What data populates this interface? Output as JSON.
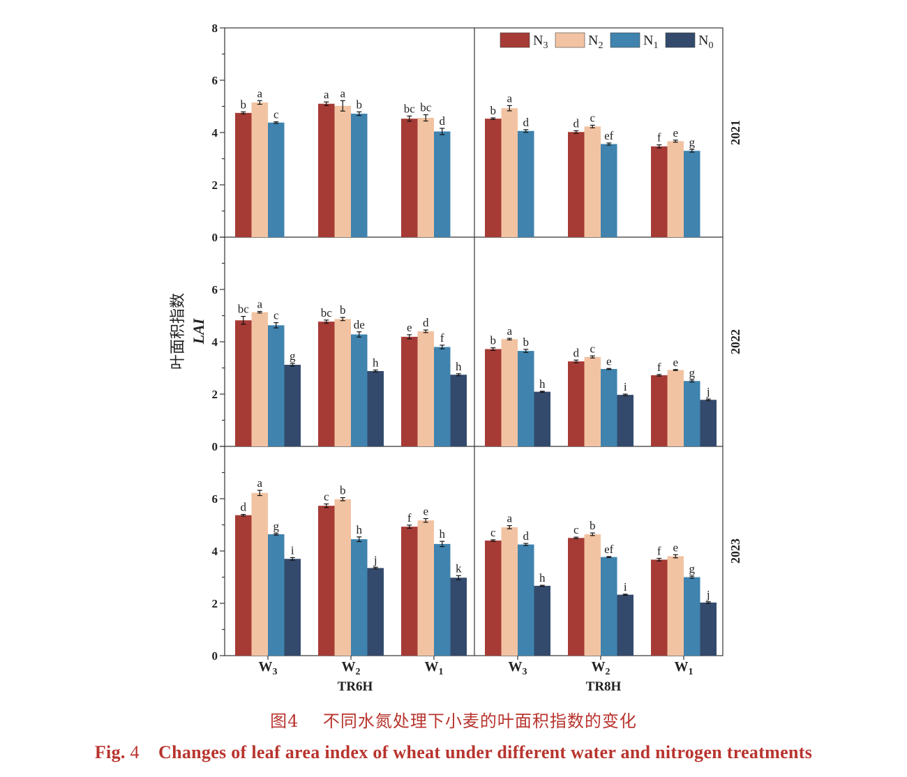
{
  "colors": {
    "N3": "#a63b36",
    "N2": "#f2c3a2",
    "N1": "#3f83ae",
    "N0": "#334a6c"
  },
  "y_axis": {
    "label_cn": "叶面积指数",
    "label_en": "LAI"
  },
  "legend": [
    "N3",
    "N2",
    "N1",
    "N0"
  ],
  "caption": {
    "cn_prefix": "图",
    "cn_num": "4",
    "cn_text": "不同水氮处理下小麦的叶面积指数的变化",
    "en_prefix": "Fig.",
    "en_num": "4",
    "en_text": "Changes of leaf area index of wheat under different water and nitrogen treatments"
  },
  "chart_data": {
    "type": "bar",
    "series_names": [
      "N3",
      "N2",
      "N1",
      "N0"
    ],
    "categories": [
      "W3",
      "W2",
      "W1"
    ],
    "groups": [
      "TR6H",
      "TR8H"
    ],
    "ylabel": "叶面积指数 LAI",
    "ylim": [
      0,
      8
    ],
    "yticks": [
      0,
      2,
      4,
      6,
      8
    ],
    "panels": [
      {
        "year": "2021",
        "TR6H": {
          "values": [
            [
              4.75,
              5.15,
              4.38,
              null
            ],
            [
              5.1,
              5.02,
              4.72,
              null
            ],
            [
              4.53,
              4.56,
              4.04,
              null
            ]
          ],
          "errors": [
            [
              0.04,
              0.07,
              0.03,
              0
            ],
            [
              0.07,
              0.2,
              0.07,
              0
            ],
            [
              0.1,
              0.12,
              0.12,
              0
            ]
          ],
          "letters": [
            [
              "b",
              "a",
              "c",
              ""
            ],
            [
              "a",
              "a",
              "b",
              ""
            ],
            [
              "bc",
              "bc",
              "d",
              ""
            ]
          ]
        },
        "TR8H": {
          "values": [
            [
              4.53,
              4.93,
              4.06,
              null
            ],
            [
              4.02,
              4.23,
              3.56,
              null
            ],
            [
              3.47,
              3.67,
              3.3,
              null
            ]
          ],
          "errors": [
            [
              0.03,
              0.1,
              0.05,
              0
            ],
            [
              0.05,
              0.05,
              0.04,
              0
            ],
            [
              0.06,
              0.04,
              0.05,
              0
            ]
          ],
          "letters": [
            [
              "b",
              "a",
              "d",
              ""
            ],
            [
              "d",
              "c",
              "ef",
              ""
            ],
            [
              "f",
              "e",
              "g",
              ""
            ]
          ]
        }
      },
      {
        "year": "2022",
        "TR6H": {
          "values": [
            [
              4.82,
              5.13,
              4.63,
              3.12
            ],
            [
              4.77,
              4.87,
              4.28,
              2.88
            ],
            [
              4.19,
              4.4,
              3.8,
              2.74
            ]
          ],
          "errors": [
            [
              0.15,
              0.03,
              0.1,
              0.05
            ],
            [
              0.06,
              0.06,
              0.1,
              0.04
            ],
            [
              0.08,
              0.05,
              0.07,
              0.04
            ]
          ],
          "letters": [
            [
              "bc",
              "a",
              "c",
              "g"
            ],
            [
              "bc",
              "b",
              "de",
              "h"
            ],
            [
              "e",
              "d",
              "f",
              "h"
            ]
          ]
        },
        "TR8H": {
          "values": [
            [
              3.72,
              4.1,
              3.65,
              2.09
            ],
            [
              3.25,
              3.42,
              2.96,
              1.97
            ],
            [
              2.72,
              2.92,
              2.5,
              1.78
            ]
          ],
          "errors": [
            [
              0.05,
              0.03,
              0.06,
              0.02
            ],
            [
              0.05,
              0.04,
              0.02,
              0.03
            ],
            [
              0.03,
              0.02,
              0.04,
              0.03
            ]
          ],
          "letters": [
            [
              "b",
              "a",
              "b",
              "h"
            ],
            [
              "d",
              "c",
              "e",
              "i"
            ],
            [
              "f",
              "e",
              "g",
              "j"
            ]
          ]
        }
      },
      {
        "year": "2023",
        "TR6H": {
          "values": [
            [
              5.37,
              6.22,
              4.64,
              3.7
            ],
            [
              5.73,
              5.98,
              4.45,
              3.35
            ],
            [
              4.93,
              5.17,
              4.27,
              2.98
            ]
          ],
          "errors": [
            [
              0.03,
              0.1,
              0.03,
              0.05
            ],
            [
              0.07,
              0.06,
              0.09,
              0.03
            ],
            [
              0.06,
              0.07,
              0.1,
              0.08
            ]
          ],
          "letters": [
            [
              "d",
              "a",
              "g",
              "i"
            ],
            [
              "c",
              "b",
              "h",
              "j"
            ],
            [
              "f",
              "e",
              "h",
              "k"
            ]
          ]
        },
        "TR8H": {
          "values": [
            [
              4.4,
              4.91,
              4.25,
              2.67
            ],
            [
              4.5,
              4.64,
              3.77,
              2.33
            ],
            [
              3.67,
              3.8,
              3.0,
              2.03
            ]
          ],
          "errors": [
            [
              0.03,
              0.06,
              0.04,
              0.02
            ],
            [
              0.03,
              0.05,
              0.02,
              0.02
            ],
            [
              0.05,
              0.06,
              0.04,
              0.03
            ]
          ],
          "letters": [
            [
              "c",
              "a",
              "d",
              "h"
            ],
            [
              "c",
              "b",
              "ef",
              "i"
            ],
            [
              "f",
              "e",
              "g",
              "j"
            ]
          ]
        }
      }
    ]
  }
}
